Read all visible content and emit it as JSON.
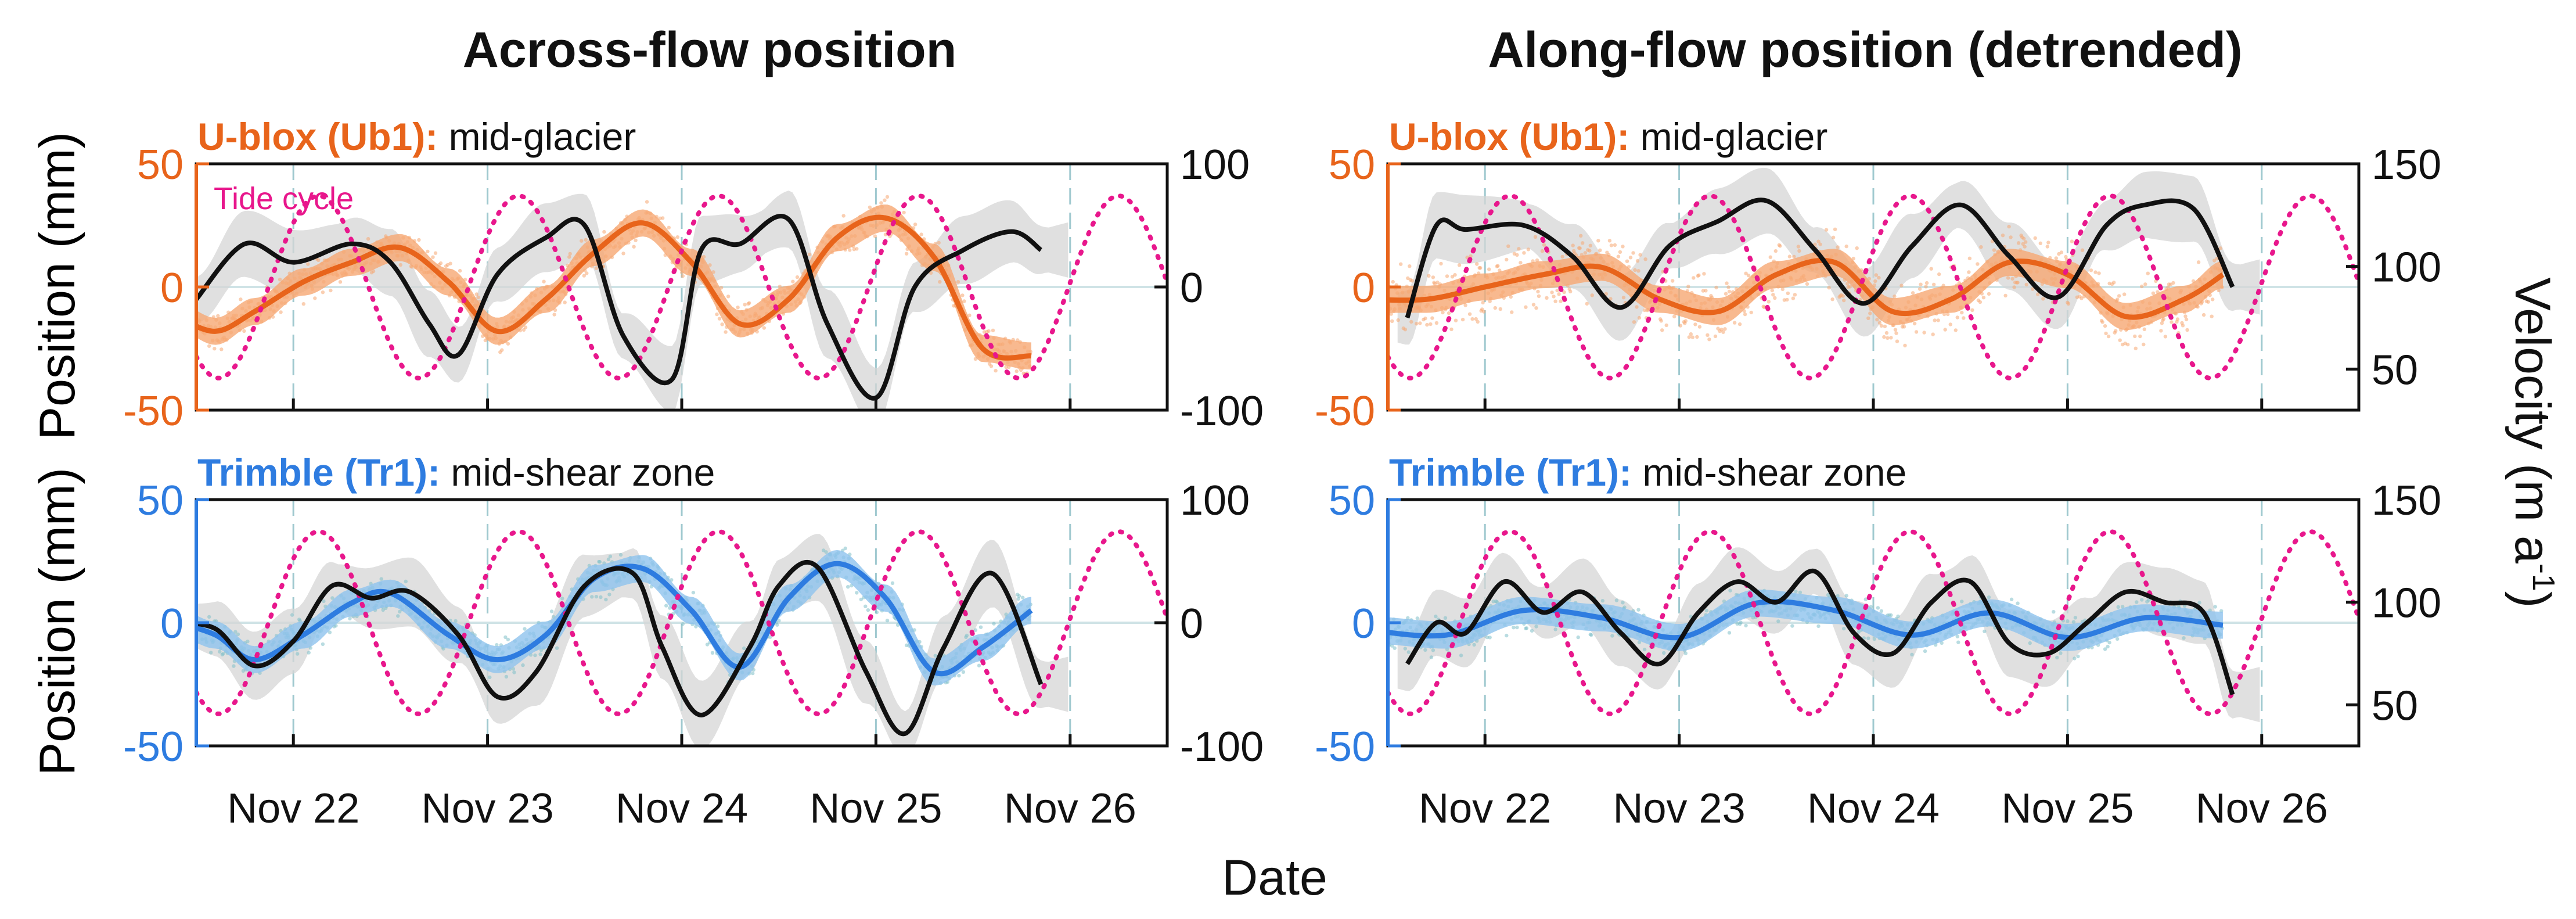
{
  "figure": {
    "column_titles": [
      "Across-flow position",
      "Along-flow position (detrended)"
    ],
    "shared_xlabel": "Date",
    "left_ylabel_top": "Position (mm)",
    "left_ylabel_bottom": "Position (mm)",
    "right_ylabel": "Velocity (m a",
    "right_ylabel_sup": "-1",
    "right_ylabel_close": ")",
    "tide_label": "Tide cycle",
    "colors": {
      "ublox": "#e8641b",
      "ublox_light": "#f6a873",
      "trimble": "#2e7ce0",
      "trimble_scatter": "#7fbfc9",
      "trimble_band": "#8fc3ee",
      "tide": "#e8178c",
      "velocity": "#111111",
      "velocity_band": "#d6d6d6"
    }
  },
  "chart_data": [
    {
      "type": "line",
      "panel": "top-left",
      "column": "Across-flow position",
      "subtitle_brand": "U-blox (Ub1):",
      "subtitle_rest": " mid-glacier",
      "xlabel": "Date",
      "ylabel": "Position (mm)",
      "xlim": [
        "2023-11-21 12:00",
        "2023-11-26 12:00"
      ],
      "ylim": [
        -50,
        50
      ],
      "yticks": [
        -50,
        0,
        50
      ],
      "y2lim": [
        -100,
        100
      ],
      "y2ticks": [
        -100,
        0,
        100
      ],
      "xticks": [
        "Nov 22",
        "Nov 23",
        "Nov 24",
        "Nov 25",
        "Nov 26"
      ],
      "grid": "dashed vertical at day ticks, horizontal at 0",
      "series": [
        {
          "name": "U-blox (Ub1)",
          "role": "position",
          "x": [
            -0.1,
            0.1,
            0.3,
            0.55,
            0.8,
            1.05,
            1.3,
            1.55,
            1.8,
            2.05,
            2.3,
            2.55,
            2.8,
            3.05,
            3.3,
            3.55,
            3.8,
            4.05,
            4.3
          ],
          "y": [
            -12,
            -18,
            -10,
            2,
            10,
            16,
            2,
            -18,
            -5,
            14,
            26,
            10,
            -15,
            -5,
            20,
            28,
            12,
            -25,
            -28
          ]
        },
        {
          "name": "Velocity",
          "role": "velocity",
          "x": [
            0.0,
            0.25,
            0.5,
            0.8,
            1.0,
            1.2,
            1.35,
            1.55,
            1.8,
            2.0,
            2.2,
            2.45,
            2.6,
            2.8,
            3.05,
            3.25,
            3.5,
            3.7,
            3.95,
            4.2,
            4.35
          ],
          "y": [
            -10,
            35,
            20,
            35,
            20,
            -30,
            -55,
            10,
            40,
            50,
            -40,
            -75,
            30,
            35,
            55,
            -30,
            -90,
            0,
            30,
            45,
            30
          ]
        },
        {
          "name": "Tide cycle",
          "role": "tide",
          "amplitude_mm": 37,
          "period_days": 1.03,
          "phase_peak_day": 0.63
        }
      ]
    },
    {
      "type": "line",
      "panel": "top-right",
      "column": "Along-flow position (detrended)",
      "subtitle_brand": "U-blox (Ub1):",
      "subtitle_rest": " mid-glacier",
      "xlabel": "Date",
      "ylabel": "Position (mm)",
      "xlim": [
        "2023-11-21 12:00",
        "2023-11-26 12:00"
      ],
      "ylim": [
        -50,
        50
      ],
      "yticks": [
        -50,
        0,
        50
      ],
      "y2label": "Velocity (m a-1)",
      "y2lim": [
        30,
        150
      ],
      "y2ticks": [
        50,
        100,
        150
      ],
      "xticks": [
        "Nov 22",
        "Nov 23",
        "Nov 24",
        "Nov 25",
        "Nov 26"
      ],
      "grid": "dashed vertical at day ticks, horizontal at 0",
      "series": [
        {
          "name": "U-blox (Ub1)",
          "role": "position",
          "x": [
            -0.1,
            0.2,
            0.5,
            0.8,
            1.1,
            1.4,
            1.7,
            2.0,
            2.3,
            2.6,
            2.9,
            3.2,
            3.5,
            3.8,
            4.1,
            4.3
          ],
          "y": [
            -5,
            -5,
            0,
            5,
            8,
            -5,
            -10,
            5,
            10,
            -10,
            -5,
            10,
            5,
            -12,
            -5,
            5
          ]
        },
        {
          "name": "Velocity",
          "role": "velocity",
          "x": [
            0.1,
            0.25,
            0.4,
            0.7,
            0.95,
            1.2,
            1.45,
            1.7,
            1.95,
            2.2,
            2.45,
            2.7,
            2.95,
            3.2,
            3.45,
            3.7,
            3.9,
            4.15,
            4.35
          ],
          "y": [
            75,
            120,
            118,
            120,
            105,
            80,
            110,
            122,
            132,
            108,
            82,
            110,
            130,
            105,
            85,
            120,
            130,
            128,
            90
          ]
        },
        {
          "name": "Tide cycle",
          "role": "tide",
          "amplitude_mm": 37,
          "period_days": 1.03,
          "phase_peak_day": 0.63
        }
      ]
    },
    {
      "type": "line",
      "panel": "bottom-left",
      "column": "Across-flow position",
      "subtitle_brand": "Trimble (Tr1):",
      "subtitle_rest": " mid-shear zone",
      "xlabel": "Date",
      "ylabel": "Position (mm)",
      "xlim": [
        "2023-11-21 12:00",
        "2023-11-26 12:00"
      ],
      "ylim": [
        -50,
        50
      ],
      "yticks": [
        -50,
        0,
        50
      ],
      "y2lim": [
        -100,
        100
      ],
      "y2ticks": [
        -100,
        0,
        100
      ],
      "xticks": [
        "Nov 22",
        "Nov 23",
        "Nov 24",
        "Nov 25",
        "Nov 26"
      ],
      "grid": "dashed vertical at day ticks, horizontal at 0",
      "series": [
        {
          "name": "Trimble (Tr1)",
          "role": "position",
          "x": [
            -0.1,
            0.1,
            0.3,
            0.55,
            0.8,
            1.0,
            1.3,
            1.55,
            1.8,
            2.05,
            2.3,
            2.55,
            2.8,
            3.05,
            3.3,
            3.55,
            3.8,
            4.05,
            4.3
          ],
          "y": [
            0,
            -5,
            -15,
            -5,
            8,
            12,
            -5,
            -15,
            -5,
            18,
            22,
            5,
            -18,
            10,
            24,
            10,
            -20,
            -10,
            5
          ]
        },
        {
          "name": "Velocity",
          "role": "velocity",
          "x": [
            -0.1,
            0.1,
            0.3,
            0.5,
            0.7,
            0.9,
            1.1,
            1.35,
            1.55,
            1.75,
            2.0,
            2.25,
            2.4,
            2.6,
            2.85,
            3.0,
            3.2,
            3.45,
            3.65,
            3.85,
            4.1,
            4.35
          ],
          "y": [
            0,
            -5,
            -35,
            -15,
            30,
            20,
            25,
            -10,
            -60,
            -40,
            30,
            40,
            -20,
            -75,
            -20,
            30,
            45,
            -40,
            -90,
            -20,
            40,
            -50
          ]
        },
        {
          "name": "Tide cycle",
          "role": "tide",
          "amplitude_mm": 37,
          "period_days": 1.03,
          "phase_peak_day": 0.63
        }
      ]
    },
    {
      "type": "line",
      "panel": "bottom-right",
      "column": "Along-flow position (detrended)",
      "subtitle_brand": "Trimble (Tr1):",
      "subtitle_rest": " mid-shear zone",
      "xlabel": "Date",
      "ylabel": "Position (mm)",
      "xlim": [
        "2023-11-21 12:00",
        "2023-11-26 12:00"
      ],
      "ylim": [
        -50,
        50
      ],
      "yticks": [
        -50,
        0,
        50
      ],
      "y2label": "Velocity (m a-1)",
      "y2lim": [
        30,
        150
      ],
      "y2ticks": [
        50,
        100,
        150
      ],
      "xticks": [
        "Nov 22",
        "Nov 23",
        "Nov 24",
        "Nov 25",
        "Nov 26"
      ],
      "grid": "dashed vertical at day ticks, horizontal at 0",
      "series": [
        {
          "name": "Trimble (Tr1)",
          "role": "position",
          "x": [
            -0.1,
            0.3,
            0.7,
            1.1,
            1.5,
            1.9,
            2.3,
            2.7,
            3.1,
            3.5,
            3.9,
            4.3
          ],
          "y": [
            -3,
            -5,
            5,
            2,
            -6,
            8,
            5,
            -5,
            4,
            -6,
            2,
            -1
          ]
        },
        {
          "name": "Velocity",
          "role": "velocity",
          "x": [
            0.1,
            0.25,
            0.4,
            0.6,
            0.8,
            1.0,
            1.2,
            1.4,
            1.6,
            1.8,
            2.0,
            2.2,
            2.4,
            2.6,
            2.8,
            3.0,
            3.2,
            3.4,
            3.6,
            3.8,
            4.0,
            4.2,
            4.35
          ],
          "y": [
            70,
            90,
            85,
            110,
            95,
            105,
            85,
            70,
            95,
            110,
            100,
            115,
            85,
            75,
            100,
            110,
            80,
            75,
            90,
            105,
            100,
            95,
            55
          ]
        },
        {
          "name": "Tide cycle",
          "role": "tide",
          "amplitude_mm": 37,
          "period_days": 1.03,
          "phase_peak_day": 0.63
        }
      ]
    }
  ]
}
